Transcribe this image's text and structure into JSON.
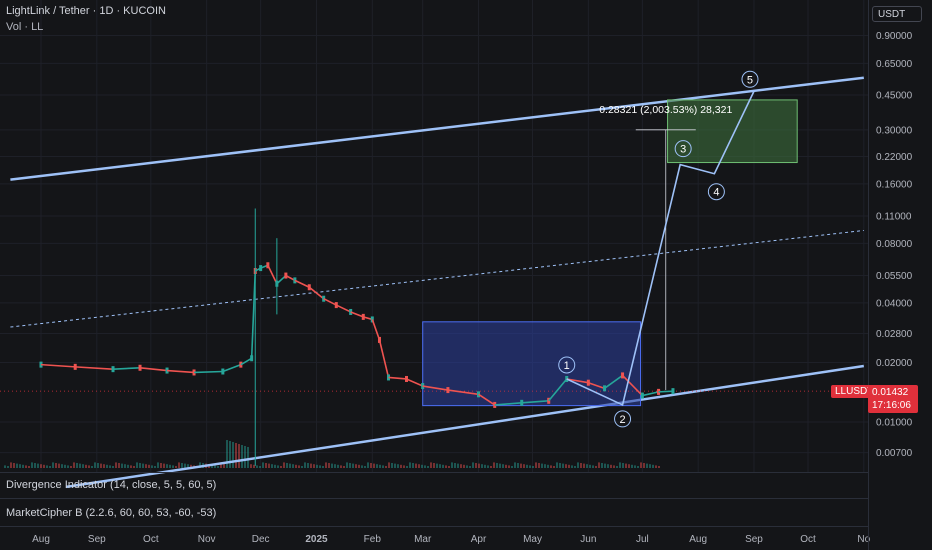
{
  "header": {
    "symbol_line": "LightLink / Tether · 1D · KUCOIN",
    "volume_label": "Vol · LL",
    "currency_button": "USDT"
  },
  "indicators": [
    "Divergence Indicator (14, close, 5, 5, 60, 5)",
    "MarketCipher B (2.2.6, 60, 60, 53, -60, -53)"
  ],
  "price_label": {
    "symbol": "LLUSDT",
    "price": "0.01432",
    "countdown": "17:16:06"
  },
  "measure_label": "0.28321 (2,003.53%) 28,321",
  "wave_labels": [
    "1",
    "2",
    "3",
    "4",
    "5"
  ],
  "colors": {
    "background": "#141518",
    "up": "#26a69a",
    "down": "#ef5350",
    "trendline": "#9ec1f7",
    "rect_blue": "#2b3f9e",
    "rect_green": "#3c6e3c",
    "price_red": "#e0303b"
  },
  "chart_data": {
    "type": "line",
    "title": "LightLink / Tether · 1D · KUCOIN",
    "y_scale": "log",
    "y_ticks": [
      "0.90000",
      "0.65000",
      "0.45000",
      "0.30000",
      "0.22000",
      "0.16000",
      "0.11000",
      "0.08000",
      "0.05500",
      "0.04000",
      "0.02800",
      "0.02000",
      "0.01000",
      "0.00700"
    ],
    "x_ticks": [
      "Aug",
      "Sep",
      "Oct",
      "Nov",
      "Dec",
      "2025",
      "Feb",
      "Mar",
      "Apr",
      "May",
      "Jun",
      "Jul",
      "Aug",
      "Sep",
      "Oct",
      "No"
    ],
    "series": [
      {
        "name": "LLUSDT",
        "x": [
          "2024-08-01",
          "2024-08-20",
          "2024-09-10",
          "2024-09-25",
          "2024-10-10",
          "2024-10-25",
          "2024-11-10",
          "2024-11-20",
          "2024-11-26",
          "2024-11-28",
          "2024-12-01",
          "2024-12-05",
          "2024-12-10",
          "2024-12-15",
          "2024-12-20",
          "2024-12-28",
          "2025-01-05",
          "2025-01-12",
          "2025-01-20",
          "2025-01-27",
          "2025-02-01",
          "2025-02-05",
          "2025-02-10",
          "2025-02-20",
          "2025-03-01",
          "2025-03-15",
          "2025-04-01",
          "2025-04-10",
          "2025-04-25",
          "2025-05-10",
          "2025-05-20",
          "2025-06-01",
          "2025-06-10",
          "2025-06-20",
          "2025-07-01",
          "2025-07-10",
          "2025-07-18"
        ],
        "y": [
          0.0195,
          0.019,
          0.0185,
          0.0188,
          0.0182,
          0.0178,
          0.018,
          0.0195,
          0.021,
          0.058,
          0.06,
          0.062,
          0.05,
          0.055,
          0.052,
          0.048,
          0.042,
          0.039,
          0.036,
          0.034,
          0.033,
          0.026,
          0.0168,
          0.0165,
          0.0152,
          0.0145,
          0.0138,
          0.0122,
          0.0125,
          0.0128,
          0.0165,
          0.0158,
          0.0148,
          0.0172,
          0.0136,
          0.0142,
          0.01432
        ]
      }
    ],
    "projection": {
      "name": "Elliott wave projection",
      "x": [
        "2025-05-20",
        "2025-06-20",
        "2025-07-22",
        "2025-08-10",
        "2025-09-01"
      ],
      "y": [
        0.0165,
        0.0122,
        0.2,
        0.18,
        0.47
      ],
      "labels": [
        "1",
        "2",
        "3",
        "4",
        "5"
      ]
    },
    "annotations": {
      "accumulation_box": {
        "x": [
          "2025-03-01",
          "2025-06-30"
        ],
        "y": [
          0.0121,
          0.0321
        ]
      },
      "target_box": {
        "x": [
          "2025-07-15",
          "2025-09-25"
        ],
        "y": [
          0.205,
          0.425
        ]
      },
      "measure": {
        "x": "2025-07-14",
        "y": [
          0.0145,
          0.3
        ],
        "text": "0.28321 (2,003.53%) 28,321"
      },
      "channel_upper": {
        "x": [
          "2024-07-15",
          "2025-11-01"
        ],
        "y": [
          0.168,
          0.55
        ]
      },
      "channel_lower": {
        "x": [
          "2024-08-15",
          "2025-11-01"
        ],
        "y": [
          0.0047,
          0.0192
        ]
      },
      "channel_mid": {
        "x": [
          "2024-07-15",
          "2025-11-01"
        ],
        "y": [
          0.0302,
          0.093
        ]
      }
    },
    "last_price": 0.01432
  }
}
